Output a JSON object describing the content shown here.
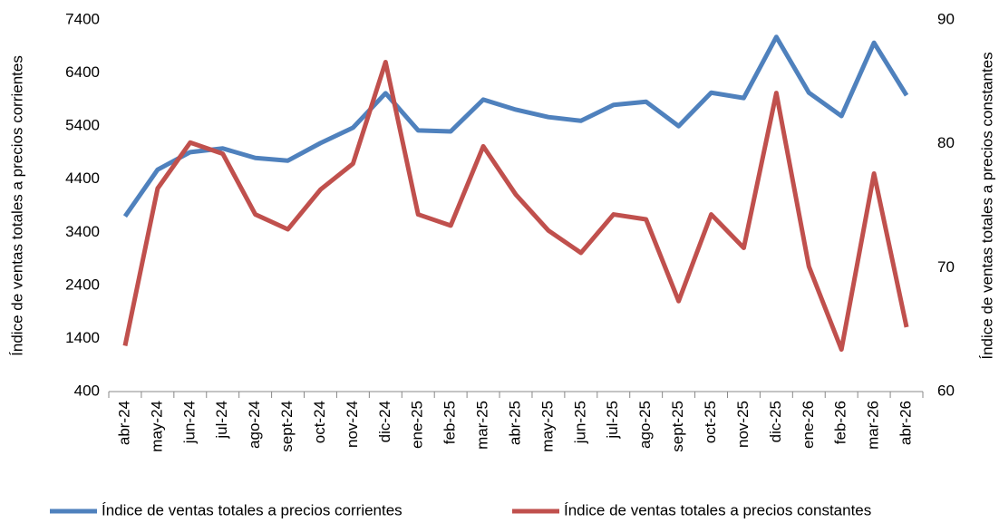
{
  "chart_data": {
    "type": "line",
    "categories": [
      "abr-24",
      "may-24",
      "jun-24",
      "jul-24",
      "ago-24",
      "sept-24",
      "oct-24",
      "nov-24",
      "dic-24",
      "ene-25",
      "feb-25",
      "mar-25",
      "abr-25",
      "may-25",
      "jun-25",
      "jul-25",
      "ago-25",
      "sept-25",
      "oct-25",
      "nov-25",
      "dic-25",
      "ene-26",
      "feb-26",
      "mar-26",
      "abr-26"
    ],
    "y_label": "Índice de ventas totales a precios corrientes",
    "y2_label": "Índice de ventas totales a precios constantes",
    "ylim": [
      400,
      7400
    ],
    "yticks": [
      400,
      1400,
      2400,
      3400,
      4400,
      5400,
      6400,
      7400
    ],
    "y2lim": [
      60,
      90
    ],
    "y2ticks": [
      60,
      70,
      80,
      90
    ],
    "legend": "bottom",
    "series": [
      {
        "name": "Índice de ventas totales a precios corrientes",
        "color": "#4f81bd",
        "values": [
          3700,
          4580,
          4910,
          4980,
          4800,
          4750,
          5080,
          5370,
          6020,
          5320,
          5300,
          5900,
          5710,
          5570,
          5500,
          5800,
          5860,
          5400,
          6030,
          5930,
          7080,
          6030,
          5590,
          6970,
          5980
        ]
      },
      {
        "name": "Índice de ventas totales a precios constantes",
        "color": "#c0504d",
        "axis": "y2",
        "values": [
          63.7,
          76.4,
          80.1,
          79.2,
          74.3,
          73.1,
          76.3,
          78.4,
          86.6,
          74.3,
          73.4,
          79.8,
          75.9,
          73.0,
          71.2,
          74.3,
          73.9,
          67.3,
          74.3,
          71.6,
          84.1,
          70.1,
          63.4,
          77.6,
          65.2
        ]
      }
    ]
  }
}
